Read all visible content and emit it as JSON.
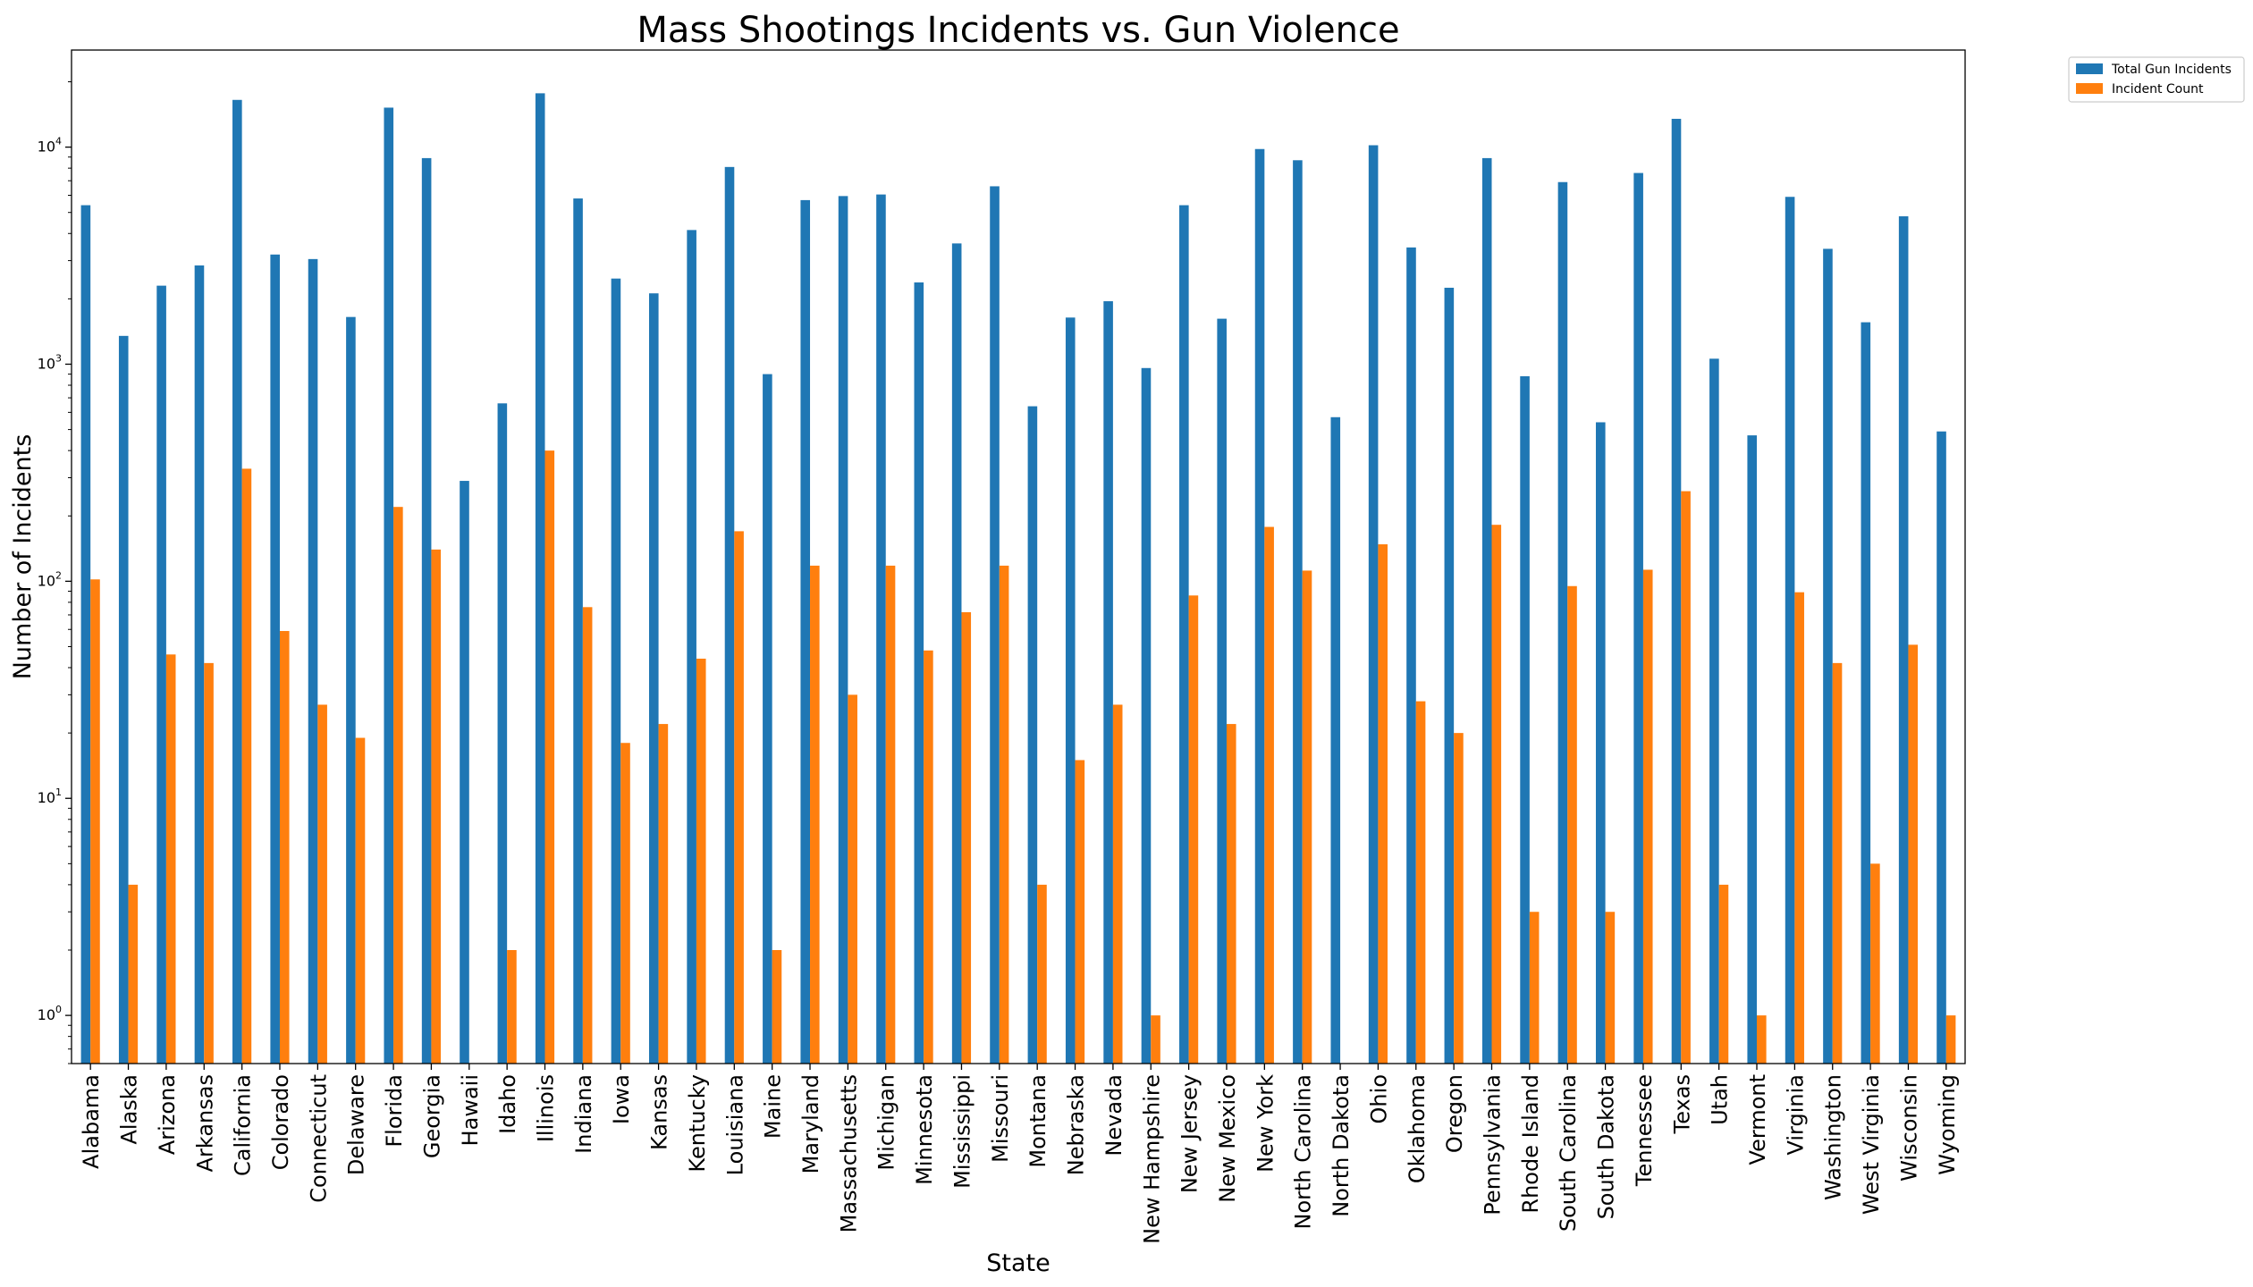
{
  "chart_data": {
    "type": "bar",
    "title": "Mass Shootings Incidents vs. Gun Violence",
    "xlabel": "State",
    "ylabel": "Number of Incidents",
    "yscale": "log",
    "ylim": [
      0.6,
      28000
    ],
    "yticks": [
      {
        "value": 1,
        "base": "10",
        "exp": "0"
      },
      {
        "value": 10,
        "base": "10",
        "exp": "1"
      },
      {
        "value": 100,
        "base": "10",
        "exp": "2"
      },
      {
        "value": 1000,
        "base": "10",
        "exp": "3"
      },
      {
        "value": 10000,
        "base": "10",
        "exp": "4"
      }
    ],
    "legend_position": "outside top-right",
    "categories": [
      "Alabama",
      "Alaska",
      "Arizona",
      "Arkansas",
      "California",
      "Colorado",
      "Connecticut",
      "Delaware",
      "Florida",
      "Georgia",
      "Hawaii",
      "Idaho",
      "Illinois",
      "Indiana",
      "Iowa",
      "Kansas",
      "Kentucky",
      "Louisiana",
      "Maine",
      "Maryland",
      "Massachusetts",
      "Michigan",
      "Minnesota",
      "Mississippi",
      "Missouri",
      "Montana",
      "Nebraska",
      "Nevada",
      "New Hampshire",
      "New Jersey",
      "New Mexico",
      "New York",
      "North Carolina",
      "North Dakota",
      "Ohio",
      "Oklahoma",
      "Oregon",
      "Pennsylvania",
      "Rhode Island",
      "South Carolina",
      "South Dakota",
      "Tennessee",
      "Texas",
      "Utah",
      "Vermont",
      "Virginia",
      "Washington",
      "West Virginia",
      "Wisconsin",
      "Wyoming"
    ],
    "series": [
      {
        "name": "Total Gun Incidents",
        "color": "#1f77b4",
        "values": [
          5400,
          1350,
          2300,
          2850,
          16500,
          3200,
          3050,
          1650,
          15200,
          8900,
          290,
          660,
          17700,
          5800,
          2480,
          2120,
          4150,
          8100,
          900,
          5700,
          5950,
          6050,
          2380,
          3600,
          6600,
          640,
          1640,
          1950,
          960,
          5400,
          1620,
          9800,
          8700,
          570,
          10200,
          3450,
          2250,
          8900,
          880,
          6900,
          540,
          7600,
          13500,
          1060,
          470,
          5900,
          3400,
          1560,
          4800,
          490
        ]
      },
      {
        "name": "Incident Count",
        "color": "#ff7f0e",
        "values": [
          102,
          4,
          46,
          42,
          330,
          59,
          27,
          19,
          220,
          140,
          null,
          2,
          400,
          76,
          18,
          22,
          44,
          170,
          2,
          118,
          30,
          118,
          48,
          72,
          118,
          4,
          15,
          27,
          1,
          86,
          22,
          178,
          112,
          null,
          148,
          28,
          20,
          182,
          3,
          95,
          3,
          113,
          260,
          4,
          1,
          89,
          42,
          5,
          51,
          1
        ]
      }
    ]
  }
}
